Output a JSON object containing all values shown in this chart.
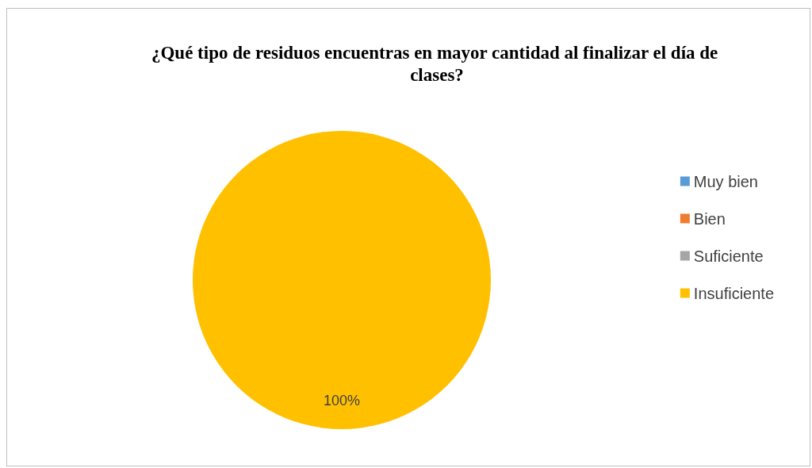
{
  "chart_data": {
    "type": "pie",
    "title": "¿Qué tipo de residuos encuentras en mayor cantidad al finalizar el día de clases?",
    "categories": [
      "Muy bien",
      "Bien",
      "Suficiente",
      "Insuficiente"
    ],
    "values": [
      0,
      0,
      0,
      100
    ],
    "colors": [
      "#5b9bd5",
      "#ed7d31",
      "#a5a5a5",
      "#ffc000"
    ],
    "value_labels": [
      null,
      null,
      null,
      "100%"
    ],
    "legend": "right"
  }
}
